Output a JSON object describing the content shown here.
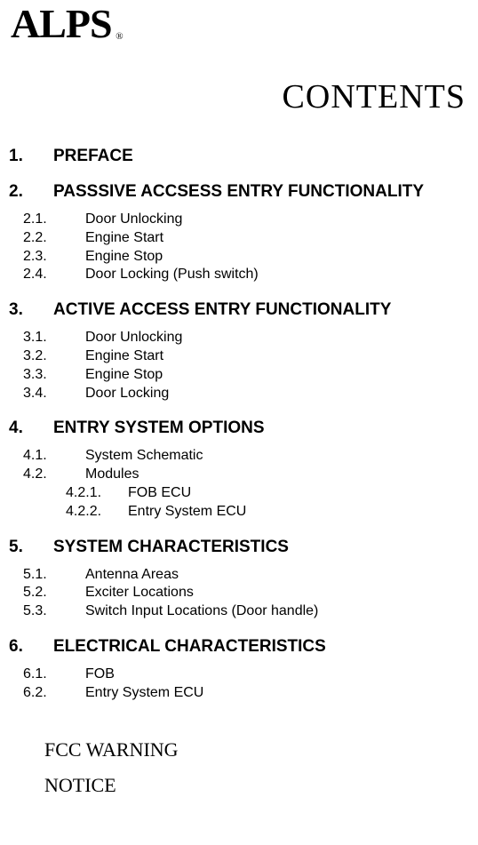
{
  "logo_text": "ALPS",
  "logo_reg": "®",
  "title": "CONTENTS",
  "sections": [
    {
      "num": "1.",
      "title": "PREFACE",
      "subs": []
    },
    {
      "num": "2.",
      "title": "PASSSIVE ACCSESS ENTRY FUNCTIONALITY",
      "subs": [
        {
          "num": "2.1.",
          "title": "Door Unlocking"
        },
        {
          "num": "2.2.",
          "title": "Engine Start"
        },
        {
          "num": "2.3.",
          "title": "Engine Stop"
        },
        {
          "num": "2.4.",
          "title": "Door Locking (Push switch)"
        }
      ]
    },
    {
      "num": "3.",
      "title": "ACTIVE ACCESS ENTRY FUNCTIONALITY",
      "subs": [
        {
          "num": "3.1.",
          "title": "Door Unlocking"
        },
        {
          "num": "3.2.",
          "title": "Engine Start"
        },
        {
          "num": "3.3.",
          "title": "Engine Stop"
        },
        {
          "num": "3.4.",
          "title": "Door Locking"
        }
      ]
    },
    {
      "num": "4.",
      "title": "ENTRY SYSTEM OPTIONS",
      "subs": [
        {
          "num": "4.1.",
          "title": "System Schematic"
        },
        {
          "num": "4.2.",
          "title": "Modules",
          "subsubs": [
            {
              "num": "4.2.1.",
              "title": "FOB ECU"
            },
            {
              "num": "4.2.2.",
              "title": "Entry System ECU"
            }
          ]
        }
      ]
    },
    {
      "num": "5.",
      "title": "SYSTEM CHARACTERISTICS",
      "subs": [
        {
          "num": "5.1.",
          "title": "Antenna Areas"
        },
        {
          "num": "5.2.",
          "title": "Exciter Locations"
        },
        {
          "num": "5.3.",
          "title": "Switch Input Locations (Door handle)"
        }
      ]
    },
    {
      "num": "6.",
      "title": "ELECTRICAL CHARACTERISTICS",
      "subs": [
        {
          "num": "6.1.",
          "title": "FOB"
        },
        {
          "num": "6.2.",
          "title": "Entry System ECU"
        }
      ]
    }
  ],
  "footer": {
    "line1": "FCC WARNING",
    "line2": "NOTICE"
  }
}
